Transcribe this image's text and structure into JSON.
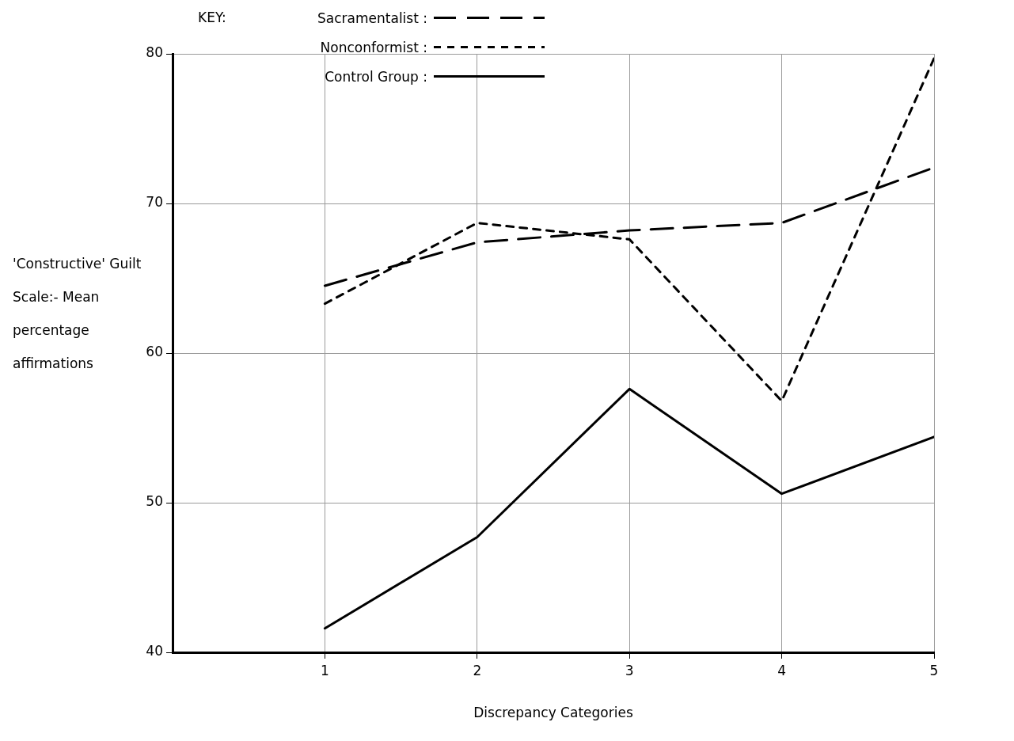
{
  "chart_data": {
    "type": "line",
    "xlabel": "Discrepancy Categories",
    "ylabel": "'Constructive' Guilt Scale:- Mean percentage affirmations",
    "legend_title": "KEY:",
    "x": [
      1,
      2,
      3,
      4,
      5
    ],
    "xlim": [
      0,
      5
    ],
    "xticks": [
      1,
      2,
      3,
      4,
      5
    ],
    "ylim": [
      40,
      80
    ],
    "yticks": [
      40,
      50,
      60,
      70,
      80
    ],
    "grid": true,
    "legend": "top",
    "marker": "none",
    "series": [
      {
        "name": "Sacramentalist :",
        "color": "#000000",
        "line_style": "dashed",
        "values": [
          64.5,
          67.4,
          68.2,
          68.7,
          72.4
        ]
      },
      {
        "name": "Nonconformist :",
        "color": "#000000",
        "line_style": "dashed",
        "values": [
          63.3,
          68.7,
          67.6,
          56.8,
          79.7
        ]
      },
      {
        "name": "Control Group :",
        "color": "#000000",
        "line_style": "solid",
        "values": [
          41.6,
          47.7,
          57.6,
          50.6,
          54.4
        ]
      }
    ]
  }
}
